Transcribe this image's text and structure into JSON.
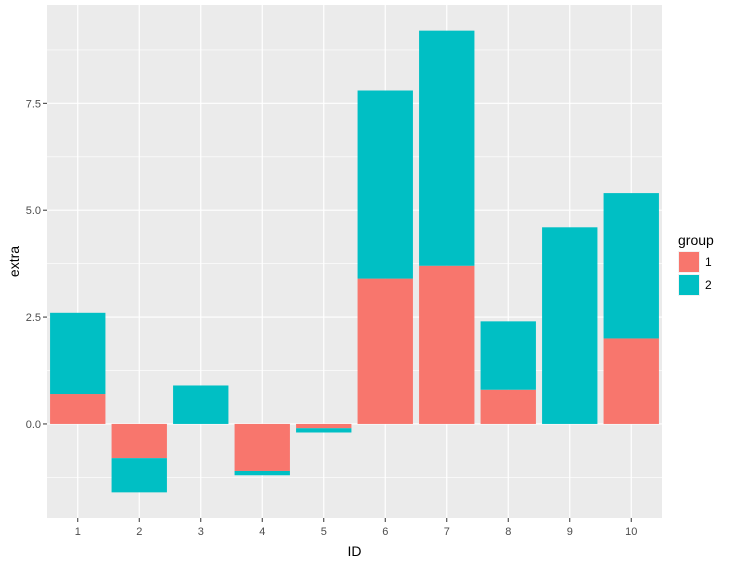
{
  "chart_data": {
    "type": "bar",
    "stacked": true,
    "categories": [
      "1",
      "2",
      "3",
      "4",
      "5",
      "6",
      "7",
      "8",
      "9",
      "10"
    ],
    "series": [
      {
        "name": "1",
        "color": "#F8766D",
        "values": [
          0.7,
          -0.8,
          0,
          -1.1,
          -0.1,
          3.4,
          3.7,
          0.8,
          0,
          2.0
        ]
      },
      {
        "name": "2",
        "color": "#00BFC4",
        "values": [
          1.9,
          -0.8,
          0.9,
          -0.1,
          -0.1,
          4.4,
          5.5,
          1.6,
          4.6,
          3.4
        ]
      }
    ],
    "series3_negative_note": "",
    "xlabel": "ID",
    "ylabel": "extra",
    "ylim": [
      -2.2,
      9.8
    ],
    "y_ticks": [
      "0.0",
      "2.5",
      "5.0",
      "7.5"
    ],
    "legend_title": "group",
    "legend_position": "right",
    "grid": true,
    "panel_color": "#EBEBEB",
    "grid_color": "#FFFFFF"
  }
}
